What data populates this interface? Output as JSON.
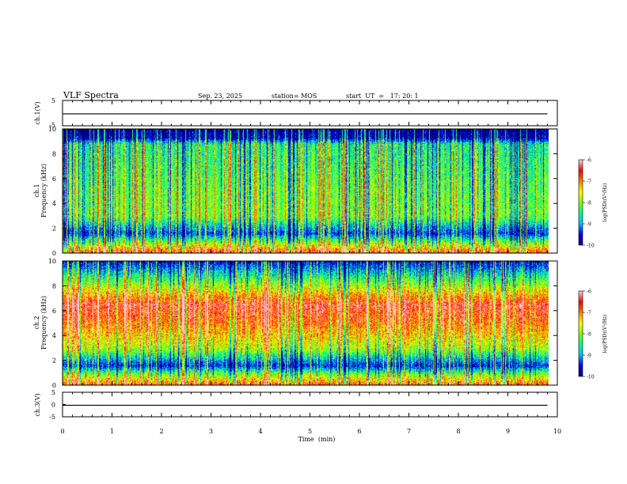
{
  "header": {
    "title": "VLF Spectra",
    "date": "Sep. 23, 2025",
    "station": "station= MOS",
    "start_ut": "start  UT  =   17: 20: 1"
  },
  "chart_data": [
    {
      "type": "line",
      "name": "ch1-waveform",
      "ylabel": "ch.1(V)",
      "ylim": [
        -5,
        5
      ],
      "yticks": [
        5,
        -5
      ],
      "x": [
        0,
        9.8
      ],
      "values": [
        -0.3,
        -0.3
      ]
    },
    {
      "type": "heatmap",
      "name": "ch1-spectrogram",
      "ylabel_line1": "ch.1",
      "ylabel_line2": "Frequency (kHz)",
      "ylim": [
        0,
        10
      ],
      "yticks": [
        0,
        2,
        4,
        6,
        8,
        10
      ],
      "data_xlim": [
        0,
        9.8
      ],
      "colorbar": {
        "label": "log(PSD)(V²/Hz)",
        "range": [
          -10,
          -6
        ],
        "ticks": [
          -6,
          -7,
          -8,
          -9,
          -10
        ]
      },
      "intensity_profile": [
        {
          "freq_khz": 0.0,
          "level": 0.9
        },
        {
          "freq_khz": 1.0,
          "level": 0.45
        },
        {
          "freq_khz": 1.6,
          "level": 0.15
        },
        {
          "freq_khz": 3.0,
          "level": 0.5
        },
        {
          "freq_khz": 5.0,
          "level": 0.48
        },
        {
          "freq_khz": 7.0,
          "level": 0.42
        },
        {
          "freq_khz": 8.8,
          "level": 0.38
        },
        {
          "freq_khz": 9.3,
          "level": 0.05
        },
        {
          "freq_khz": 10.0,
          "level": 0.0
        }
      ]
    },
    {
      "type": "heatmap",
      "name": "ch2-spectrogram",
      "ylabel_line1": "ch.2",
      "ylabel_line2": "Frequency (kHz)",
      "ylim": [
        0,
        10
      ],
      "yticks": [
        0,
        2,
        4,
        6,
        8,
        10
      ],
      "data_xlim": [
        0,
        9.8
      ],
      "colorbar": {
        "label": "log(PSD)(V²/Hz)",
        "range": [
          -10,
          -6
        ],
        "ticks": [
          -6,
          -7,
          -8,
          -9,
          -10
        ]
      },
      "intensity_profile": [
        {
          "freq_khz": 0.0,
          "level": 0.85
        },
        {
          "freq_khz": 1.0,
          "level": 0.45
        },
        {
          "freq_khz": 1.6,
          "level": 0.12
        },
        {
          "freq_khz": 3.0,
          "level": 0.55
        },
        {
          "freq_khz": 5.0,
          "level": 0.78
        },
        {
          "freq_khz": 6.5,
          "level": 0.9
        },
        {
          "freq_khz": 8.0,
          "level": 0.55
        },
        {
          "freq_khz": 9.3,
          "level": 0.25
        },
        {
          "freq_khz": 10.0,
          "level": 0.1
        }
      ]
    },
    {
      "type": "line",
      "name": "ch3-waveform",
      "ylabel": "ch.3(V)",
      "ylim": [
        -5,
        5
      ],
      "yticks": [
        5,
        0,
        -5
      ],
      "x": [
        0,
        9.8
      ],
      "values": [
        -0.3,
        -0.3
      ]
    }
  ],
  "xaxis": {
    "label": "Time  (min)",
    "xlim": [
      0,
      10
    ],
    "ticks": [
      0,
      1,
      2,
      3,
      4,
      5,
      6,
      7,
      8,
      9,
      10
    ]
  },
  "colors": {
    "cmap": [
      "#000080",
      "#0000ff",
      "#00c0ff",
      "#00ff80",
      "#80ff00",
      "#ffff00",
      "#ff8000",
      "#ff0000",
      "#ffd0d0"
    ]
  }
}
